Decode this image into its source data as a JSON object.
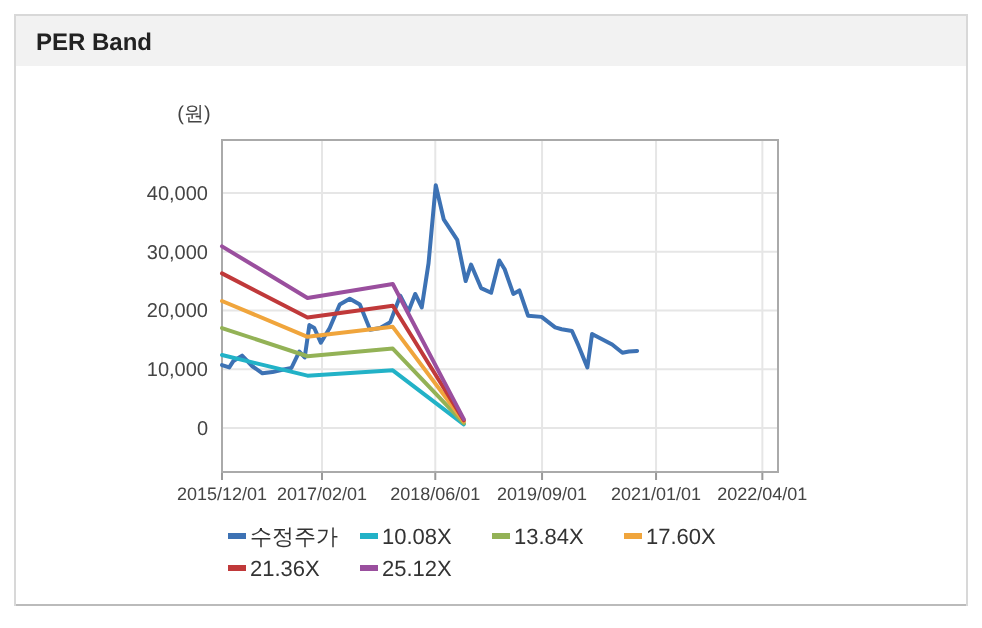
{
  "chart_data": {
    "type": "line",
    "title": "PER Band",
    "ylabel": "(원)",
    "xlim": [
      "2015-12-01",
      "2022-06-07"
    ],
    "ylim": [
      -7500,
      49000
    ],
    "xticks": [
      {
        "value": "2015-12-01",
        "label": "2015/12/01"
      },
      {
        "value": "2017-02-01",
        "label": "2017/02/01"
      },
      {
        "value": "2018-06-01",
        "label": "2018/06/01"
      },
      {
        "value": "2019-09-01",
        "label": "2019/09/01"
      },
      {
        "value": "2021-01-01",
        "label": "2021/01/01"
      },
      {
        "value": "2022-04-01",
        "label": "2022/04/01"
      }
    ],
    "yticks": [
      0,
      {
        "value": 10000,
        "label": "10,000"
      },
      {
        "value": 20000,
        "label": "20,000"
      },
      {
        "value": 30000,
        "label": "30,000"
      },
      {
        "value": 40000,
        "label": "40,000"
      }
    ],
    "grid": true,
    "legend": "bottom",
    "series": [
      {
        "name": "수정주가",
        "color": "#3d72b4",
        "x": [
          "2015-12-01",
          "2016-01-01",
          "2016-01-19",
          "2016-02-25",
          "2016-04-09",
          "2016-05-22",
          "2016-07-04",
          "2016-08-16",
          "2016-09-23",
          "2016-10-27",
          "2016-11-19",
          "2016-12-09",
          "2016-12-30",
          "2017-01-27",
          "2017-03-06",
          "2017-04-18",
          "2017-05-31",
          "2017-07-13",
          "2017-08-26",
          "2017-10-08",
          "2017-11-20",
          "2018-01-02",
          "2018-02-06",
          "2018-03-07",
          "2018-04-04",
          "2018-05-03",
          "2018-06-03",
          "2018-07-07",
          "2018-09-03",
          "2018-10-09",
          "2018-11-01",
          "2018-12-14",
          "2019-01-26",
          "2019-03-02",
          "2019-03-25",
          "2019-05-01",
          "2019-05-27",
          "2019-07-03",
          "2019-08-30",
          "2019-10-27",
          "2019-11-24",
          "2020-01-07",
          "2020-02-04",
          "2020-03-13",
          "2020-04-02",
          "2020-05-15",
          "2020-06-27",
          "2020-08-10",
          "2020-09-07",
          "2020-10-12"
        ],
        "values": [
          10700,
          10300,
          11400,
          12300,
          10500,
          9300,
          9500,
          9900,
          10200,
          13000,
          12000,
          17500,
          17000,
          14500,
          17000,
          21000,
          22000,
          21000,
          16700,
          17000,
          18000,
          22500,
          19800,
          22800,
          20500,
          28000,
          41300,
          35500,
          32000,
          25000,
          27800,
          23800,
          23000,
          28500,
          27000,
          22800,
          23400,
          19100,
          18900,
          17100,
          16800,
          16500,
          14000,
          10300,
          16000,
          15100,
          14200,
          12800,
          13000,
          13100
        ]
      },
      {
        "name": "10.08X",
        "color": "#22b2c7",
        "x": [
          "2015-12-01",
          "2016-12-01",
          "2017-12-01",
          "2018-10-01"
        ],
        "values": [
          12400,
          8900,
          9800,
          600
        ]
      },
      {
        "name": "13.84X",
        "color": "#93b256",
        "x": [
          "2015-12-01",
          "2016-12-01",
          "2017-12-01",
          "2018-10-01"
        ],
        "values": [
          17000,
          12200,
          13500,
          800
        ]
      },
      {
        "name": "17.60X",
        "color": "#f0a53c",
        "x": [
          "2015-12-01",
          "2016-12-01",
          "2017-12-01",
          "2018-10-01"
        ],
        "values": [
          21600,
          15500,
          17200,
          1100
        ]
      },
      {
        "name": "21.36X",
        "color": "#c0393a",
        "x": [
          "2015-12-01",
          "2016-12-01",
          "2017-12-01",
          "2018-10-01"
        ],
        "values": [
          26300,
          18800,
          20800,
          1300
        ]
      },
      {
        "name": "25.12X",
        "color": "#9a4f9e",
        "x": [
          "2015-12-01",
          "2016-12-01",
          "2017-12-01",
          "2018-10-01"
        ],
        "values": [
          30900,
          22100,
          24500,
          1500
        ]
      }
    ]
  }
}
